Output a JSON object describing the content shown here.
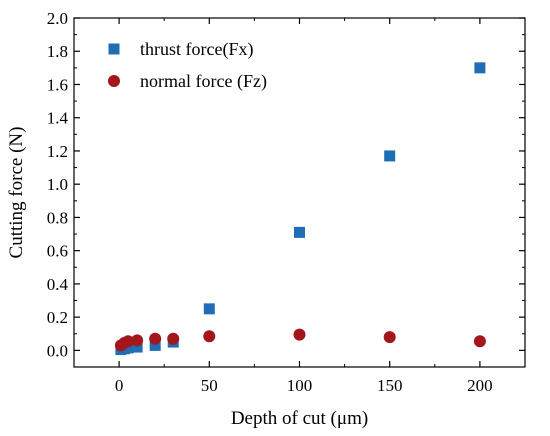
{
  "chart_data": {
    "type": "scatter",
    "xlabel": "Depth of cut (μm)",
    "ylabel": "Cutting force (N)",
    "xlim": [
      -25,
      225
    ],
    "ylim": [
      -0.1,
      2.0
    ],
    "x_ticks": [
      0,
      50,
      100,
      150,
      200
    ],
    "y_ticks": [
      0.0,
      0.2,
      0.4,
      0.6,
      0.8,
      1.0,
      1.2,
      1.4,
      1.6,
      1.8,
      2.0
    ],
    "x_tick_labels": [
      "0",
      "50",
      "100",
      "150",
      "200"
    ],
    "y_tick_labels": [
      "0.0",
      "0.2",
      "0.4",
      "0.6",
      "0.8",
      "1.0",
      "1.2",
      "1.4",
      "1.6",
      "1.8",
      "2.0"
    ],
    "grid": false,
    "legend_position": "top-left",
    "series": [
      {
        "name": "thrust force(Fx)",
        "marker": "square",
        "color": "#1f6db5",
        "x": [
          1,
          3,
          5,
          10,
          20,
          30,
          50,
          100,
          150,
          200
        ],
        "y": [
          0.005,
          0.01,
          0.015,
          0.02,
          0.03,
          0.05,
          0.25,
          0.71,
          1.17,
          1.7
        ]
      },
      {
        "name": "normal force (Fz)",
        "marker": "circle",
        "color": "#a3161c",
        "x": [
          1,
          3,
          5,
          10,
          20,
          30,
          50,
          100,
          150,
          200
        ],
        "y": [
          0.03,
          0.045,
          0.055,
          0.06,
          0.07,
          0.07,
          0.085,
          0.095,
          0.08,
          0.055
        ]
      }
    ]
  }
}
